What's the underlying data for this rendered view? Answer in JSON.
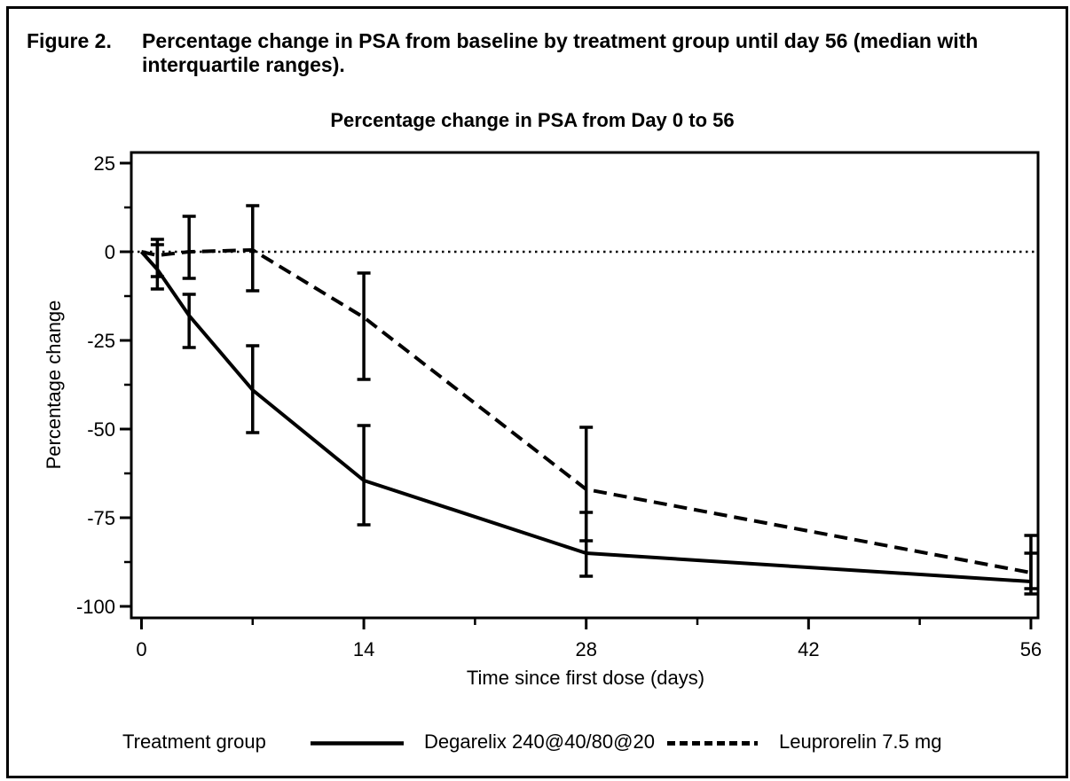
{
  "figure": {
    "label": "Figure 2.",
    "caption": "Percentage change in PSA from baseline by treatment group until day 56 (median with interquartile ranges)."
  },
  "legend": {
    "title": "Treatment group",
    "items": [
      {
        "label": "Degarelix 240@40/80@20",
        "line_style": "solid"
      },
      {
        "label": "Leuprorelin 7.5 mg",
        "line_style": "dashed"
      }
    ]
  },
  "colors": {
    "foreground": "#000000",
    "background": "#ffffff"
  },
  "chart_data": {
    "type": "line",
    "title": "Percentage change in PSA from Day 0 to 56",
    "xlabel": "Time since first dose (days)",
    "ylabel": "Percentage change",
    "xlim": [
      -0.64,
      56.45
    ],
    "ylim": [
      -103.25,
      28
    ],
    "x_major_ticks": [
      0,
      14,
      28,
      42,
      56
    ],
    "x_minor_ticks": [
      7,
      21,
      35,
      49
    ],
    "y_major_ticks": [
      25,
      0,
      -25,
      -50,
      -75,
      -100
    ],
    "y_minor_ticks": [
      12.5,
      -12.5,
      -37.5,
      -62.5,
      -87.5
    ],
    "reference_line_y": 0,
    "grid": false,
    "legend_position": "bottom",
    "series": [
      {
        "name": "Degarelix 240@40/80@20",
        "line_style": "solid",
        "x": [
          0,
          1,
          3,
          7,
          14,
          28,
          56
        ],
        "median": [
          0,
          -5,
          -18,
          -39,
          -64.5,
          -85,
          -93
        ],
        "iqr_low": [
          null,
          -10.5,
          -27,
          -51,
          -77,
          -91.5,
          -96.5
        ],
        "iqr_high": [
          null,
          2,
          -12,
          -26.5,
          -49,
          -73.5,
          -85
        ]
      },
      {
        "name": "Leuprorelin 7.5 mg",
        "line_style": "dashed",
        "x": [
          0,
          1,
          3,
          7,
          14,
          28,
          56
        ],
        "median": [
          0,
          -1,
          0,
          0.5,
          -18.5,
          -67,
          -90.5
        ],
        "iqr_low": [
          null,
          -7,
          -7.5,
          -11,
          -36,
          -81.5,
          -95
        ],
        "iqr_high": [
          null,
          3.5,
          10,
          13,
          -6,
          -49.5,
          -80
        ]
      }
    ]
  }
}
